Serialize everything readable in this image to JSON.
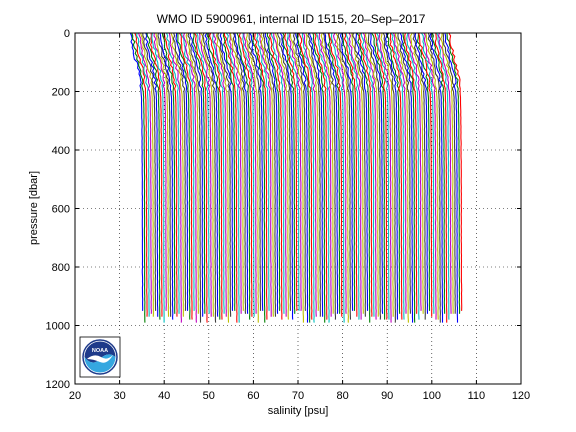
{
  "chart_data": {
    "type": "line",
    "title": "WMO ID 5900961, internal ID 1515, 20–Sep–2017",
    "xlabel": "salinity [psu]",
    "ylabel": "pressure [dbar]",
    "xlim": [
      20,
      120
    ],
    "ylim": [
      1200,
      0
    ],
    "y_reversed": true,
    "x_ticks": [
      "20",
      "30",
      "40",
      "50",
      "60",
      "70",
      "80",
      "90",
      "100",
      "110",
      "120"
    ],
    "y_ticks": [
      "0",
      "200",
      "400",
      "600",
      "800",
      "1000",
      "1200"
    ],
    "x_tick_values": [
      20,
      30,
      40,
      50,
      60,
      70,
      80,
      90,
      100,
      110,
      120
    ],
    "y_tick_values": [
      0,
      200,
      400,
      600,
      800,
      1000,
      1200
    ],
    "grid": true,
    "series_description": "Many vertical salinity profiles, each offset along the salinity axis; surface salinity roughly 32–34 psu increasing to about 34.5–35 psu below ~150 dbar, extending from 0 to about 1000 dbar.",
    "profile_count": 150,
    "offset_start": 32.5,
    "offset_step": 0.48,
    "profile_shape": [
      {
        "p": 0,
        "ds": 0.0
      },
      {
        "p": 40,
        "ds": 0.3
      },
      {
        "p": 80,
        "ds": 0.9
      },
      {
        "p": 120,
        "ds": 1.6
      },
      {
        "p": 160,
        "ds": 2.1
      },
      {
        "p": 220,
        "ds": 2.4
      },
      {
        "p": 300,
        "ds": 2.5
      },
      {
        "p": 500,
        "ds": 2.6
      },
      {
        "p": 700,
        "ds": 2.6
      },
      {
        "p": 900,
        "ds": 2.65
      },
      {
        "p": 1000,
        "ds": 2.7
      }
    ],
    "series_colors": [
      "#0000ff",
      "#008000",
      "#ff0000",
      "#00bfbf",
      "#bf00bf",
      "#bfbf00",
      "#404040"
    ]
  },
  "logo": {
    "name": "noaa-logo",
    "text": "NOAA"
  }
}
